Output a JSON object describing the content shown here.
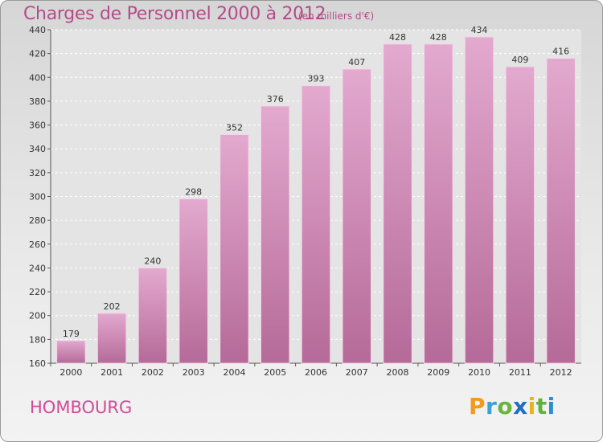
{
  "header": {
    "title": "Charges de Personnel 2000 à 2012",
    "subtitle": "(en milliers d'€)"
  },
  "footer": {
    "city": "HOMBOURG",
    "logo_text": "Proxiti",
    "logo_letters": [
      {
        "char": "P",
        "color": "#f29a1f"
      },
      {
        "char": "r",
        "color": "#3aa0d8"
      },
      {
        "char": "o",
        "color": "#6cb33e"
      },
      {
        "char": "x",
        "color": "#1f6fc0"
      },
      {
        "char": "i",
        "color": "#e8b41c"
      },
      {
        "char": "t",
        "color": "#5fb23c"
      },
      {
        "char": "i",
        "color": "#2a8fd0"
      }
    ]
  },
  "colors": {
    "title": "#b84a8a",
    "bar_top": "#e3a9cf",
    "bar_bottom": "#b56a98",
    "grid": "#ffffff",
    "axis": "#555555"
  },
  "chart_data": {
    "type": "bar",
    "title": "Charges de Personnel 2000 à 2012",
    "subtitle": "(en milliers d'€)",
    "xlabel": "",
    "ylabel": "",
    "categories": [
      "2000",
      "2001",
      "2002",
      "2003",
      "2004",
      "2005",
      "2006",
      "2007",
      "2008",
      "2009",
      "2010",
      "2011",
      "2012"
    ],
    "values": [
      179,
      202,
      240,
      298,
      352,
      376,
      393,
      407,
      428,
      428,
      434,
      409,
      416
    ],
    "ylim": [
      160,
      440
    ],
    "yticks": [
      160,
      180,
      200,
      220,
      240,
      260,
      280,
      300,
      320,
      340,
      360,
      380,
      400,
      420,
      440
    ],
    "grid": true
  }
}
